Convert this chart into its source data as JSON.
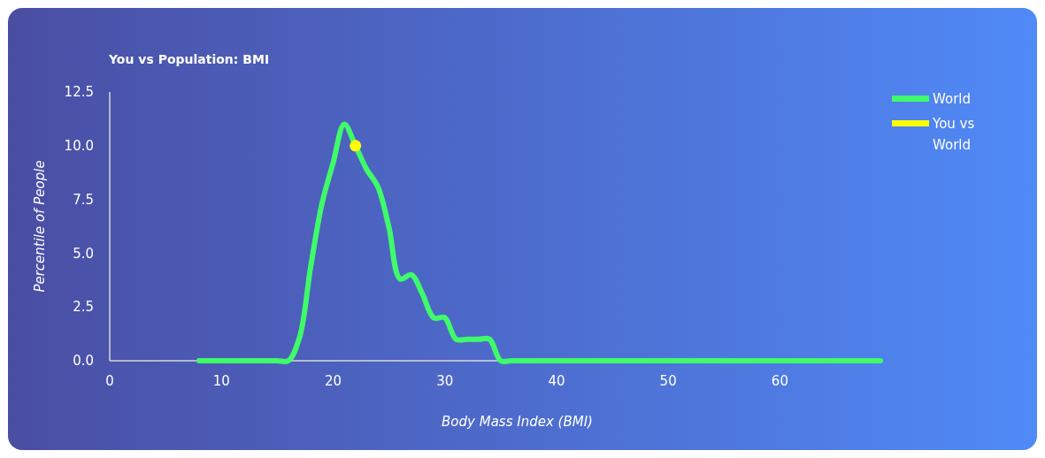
{
  "chart_data": {
    "type": "line",
    "title": "You vs Population: BMI",
    "xlabel": "Body Mass Index (BMI)",
    "ylabel": "Percentile of People",
    "xlim": [
      0,
      69
    ],
    "xticks": [
      0,
      10,
      20,
      30,
      40,
      50,
      60
    ],
    "ylim": [
      0,
      12.5
    ],
    "yticks": [
      {
        "value": 0,
        "label": "0.0"
      },
      {
        "value": 2.5,
        "label": "2.5"
      },
      {
        "value": 5,
        "label": "5.0"
      },
      {
        "value": 7.5,
        "label": "7.5"
      },
      {
        "value": 10,
        "label": "10.0"
      },
      {
        "value": 12.5,
        "label": "12.5"
      }
    ],
    "grid": false,
    "legend": "right",
    "series": [
      {
        "name": "World",
        "type": "line",
        "color": "#3ffb6a",
        "marker": "none",
        "x": [
          8,
          9,
          10,
          11,
          12,
          13,
          14,
          15,
          16,
          17,
          18,
          19,
          20,
          21,
          22,
          23,
          24,
          25,
          26,
          27,
          28,
          29,
          30,
          31,
          32,
          33,
          34,
          35,
          36,
          40,
          45,
          50,
          55,
          60,
          65,
          69
        ],
        "values": [
          0,
          0,
          0,
          0,
          0,
          0,
          0,
          0,
          0,
          1.1,
          4.4,
          7.3,
          9.2,
          11,
          10,
          8.9,
          8.1,
          6.2,
          3.8,
          4,
          3.1,
          2,
          2,
          1,
          1,
          1,
          1,
          0,
          0,
          0,
          0,
          0,
          0,
          0,
          0,
          0
        ]
      },
      {
        "name": "You vs World",
        "type": "scatter",
        "color": "#ffff00",
        "marker": "circle",
        "x": [
          22
        ],
        "values": [
          10
        ]
      }
    ]
  }
}
